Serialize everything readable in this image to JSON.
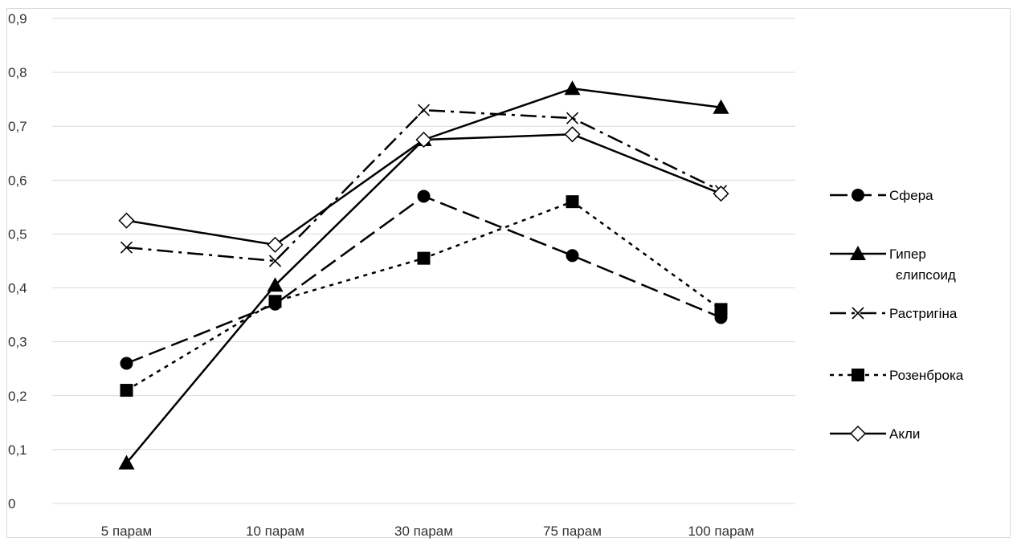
{
  "chart_data": {
    "type": "line",
    "title": "",
    "xlabel": "",
    "ylabel": "",
    "categories": [
      "5 парам",
      "10 парам",
      "30 парам",
      "75 парам",
      "100 парам"
    ],
    "ylim": [
      0,
      0.9
    ],
    "yticks": [
      "0",
      "0,1",
      "0,2",
      "0,3",
      "0,4",
      "0,5",
      "0,6",
      "0,7",
      "0,8",
      "0,9"
    ],
    "grid": true,
    "legend_position": "right",
    "series": [
      {
        "name": "Сфера",
        "values": [
          0.26,
          0.37,
          0.57,
          0.46,
          0.345
        ],
        "marker": "circle",
        "dash": "long-dash",
        "color": "#000000"
      },
      {
        "name": "Гипер єлипсоид",
        "values": [
          0.075,
          0.405,
          0.675,
          0.77,
          0.735
        ],
        "marker": "triangle",
        "dash": "solid",
        "color": "#000000"
      },
      {
        "name": "Растригіна",
        "values": [
          0.475,
          0.45,
          0.73,
          0.715,
          0.58
        ],
        "marker": "cross",
        "dash": "dash-dot",
        "color": "#000000"
      },
      {
        "name": "Розенброка",
        "values": [
          0.21,
          0.375,
          0.455,
          0.56,
          0.36
        ],
        "marker": "square",
        "dash": "dotted",
        "color": "#000000"
      },
      {
        "name": "Акли",
        "values": [
          0.525,
          0.48,
          0.675,
          0.685,
          0.575
        ],
        "marker": "diamond-open",
        "dash": "solid",
        "color": "#000000"
      }
    ]
  }
}
